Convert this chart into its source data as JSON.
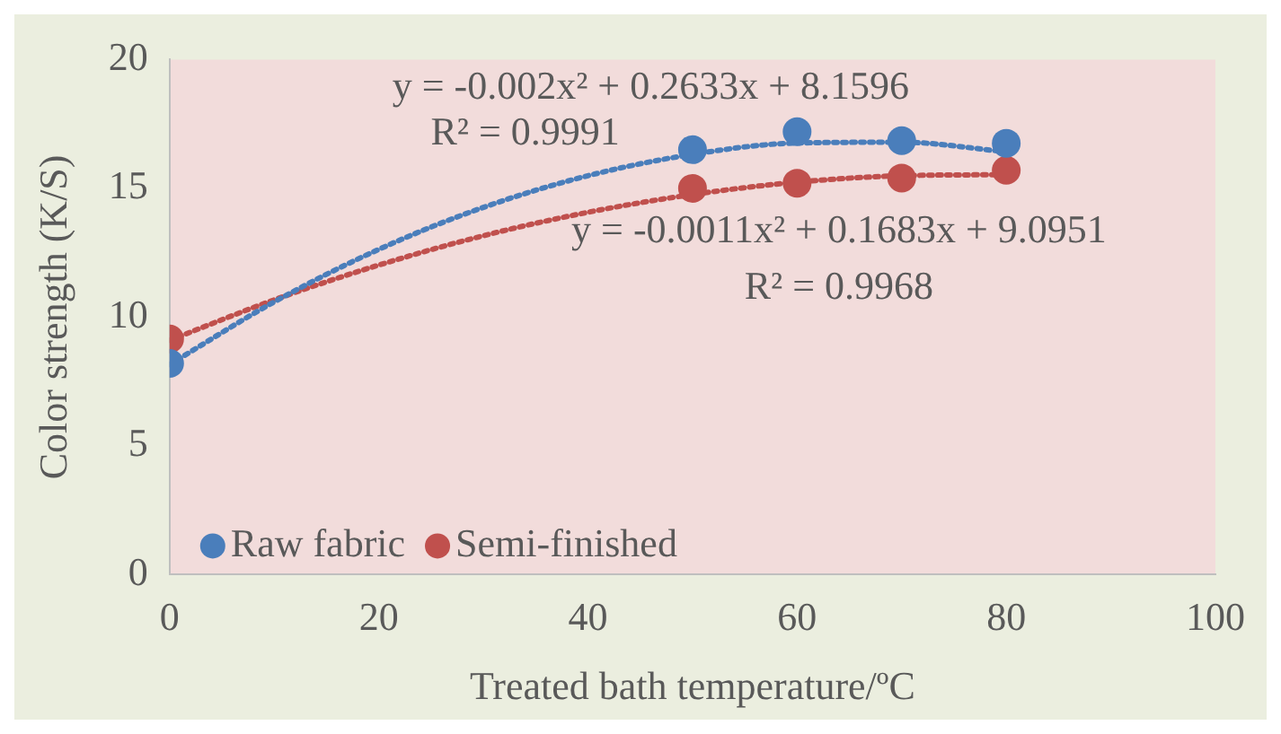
{
  "chart_data": {
    "type": "scatter",
    "xlabel": "Treated bath temperature/ºC",
    "ylabel": "Color strength (K/S)",
    "x": [
      0,
      50,
      60,
      70,
      80
    ],
    "series": [
      {
        "name": "Raw fabric",
        "color": "#4a7ebb",
        "values": [
          8.2,
          16.5,
          17.2,
          16.85,
          16.75
        ],
        "marker": "circle"
      },
      {
        "name": "Semi-finished",
        "color": "#c0504d",
        "values": [
          9.15,
          15.0,
          15.2,
          15.4,
          15.7
        ],
        "marker": "circle"
      },
      {
        "type": "line",
        "color": "#4a7ebb",
        "x": [
          0,
          10,
          20,
          30,
          40,
          50,
          60,
          70,
          80
        ],
        "values": [
          8.16,
          10.59,
          12.63,
          14.26,
          15.49,
          16.32,
          16.76,
          16.79,
          16.42
        ],
        "marker": "none",
        "line_style": "dotted"
      },
      {
        "type": "line",
        "color": "#c0504d",
        "x": [
          0,
          10,
          20,
          30,
          40,
          50,
          60,
          70,
          80
        ],
        "values": [
          9.1,
          10.67,
          12.02,
          13.16,
          14.07,
          14.76,
          15.24,
          15.49,
          15.53
        ],
        "marker": "none",
        "line_style": "dotted"
      }
    ],
    "xlim": [
      0,
      100
    ],
    "xticks": [
      0,
      20,
      40,
      60,
      80,
      100
    ],
    "ylim": [
      0,
      20
    ],
    "yticks": [
      0,
      5,
      10,
      15,
      20
    ],
    "annotations": [
      "y = -0.002x² + 0.2633x + 8.1596",
      "R² = 0.9991",
      "y = -0.0011x² + 0.1683x + 9.0951",
      "R² = 0.9968"
    ],
    "grid": false,
    "legend": "bottom left"
  }
}
